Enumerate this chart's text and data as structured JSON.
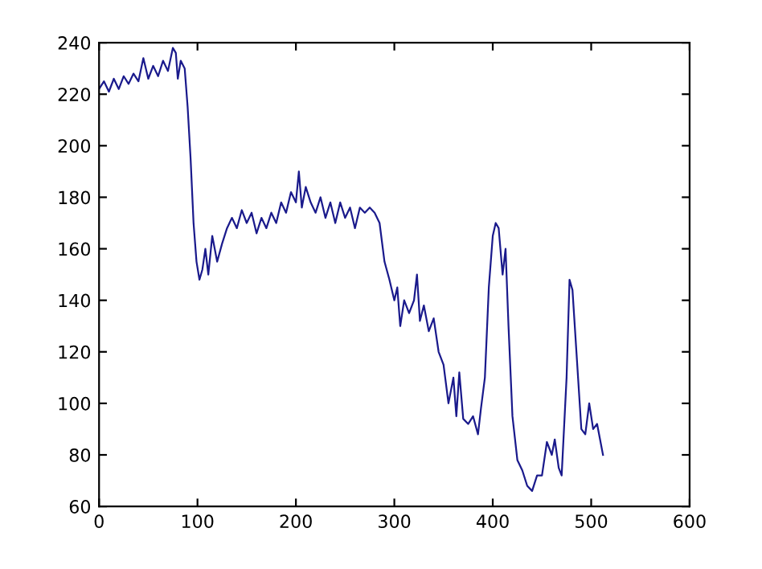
{
  "chart_data": {
    "type": "line",
    "xlim": [
      0,
      600
    ],
    "xticks": [
      0,
      100,
      200,
      300,
      400,
      500,
      600
    ],
    "ylim": [
      60,
      240
    ],
    "yticks": [
      60,
      80,
      100,
      120,
      140,
      160,
      180,
      200,
      220,
      240
    ],
    "grid": false,
    "legend": false,
    "marker": "none",
    "line_style": "solid",
    "series": [
      {
        "color": "#1a1a8c",
        "x": [
          0,
          5,
          10,
          15,
          20,
          25,
          30,
          35,
          40,
          45,
          50,
          55,
          60,
          65,
          70,
          75,
          78,
          80,
          83,
          87,
          90,
          93,
          96,
          99,
          102,
          105,
          108,
          111,
          115,
          120,
          125,
          130,
          135,
          140,
          145,
          150,
          155,
          160,
          165,
          170,
          175,
          180,
          185,
          190,
          195,
          200,
          203,
          206,
          210,
          215,
          220,
          225,
          230,
          235,
          240,
          245,
          250,
          255,
          260,
          265,
          270,
          275,
          280,
          285,
          290,
          295,
          300,
          303,
          306,
          310,
          315,
          320,
          323,
          326,
          330,
          335,
          340,
          345,
          350,
          355,
          360,
          363,
          366,
          370,
          375,
          380,
          385,
          388,
          392,
          396,
          400,
          403,
          406,
          410,
          413,
          416,
          420,
          425,
          430,
          435,
          440,
          445,
          450,
          455,
          460,
          463,
          467,
          470,
          475,
          478,
          481,
          485,
          490,
          494,
          498,
          502,
          506,
          509,
          512
        ],
        "values": [
          222,
          225,
          221,
          226,
          222,
          227,
          224,
          228,
          225,
          234,
          226,
          231,
          227,
          233,
          229,
          238,
          236,
          226,
          233,
          230,
          215,
          195,
          170,
          155,
          148,
          152,
          160,
          150,
          165,
          155,
          162,
          168,
          172,
          168,
          175,
          170,
          174,
          166,
          172,
          168,
          174,
          170,
          178,
          174,
          182,
          178,
          190,
          176,
          184,
          178,
          174,
          180,
          172,
          178,
          170,
          178,
          172,
          176,
          168,
          176,
          174,
          176,
          174,
          170,
          155,
          148,
          140,
          145,
          130,
          140,
          135,
          140,
          150,
          132,
          138,
          128,
          133,
          120,
          115,
          100,
          110,
          95,
          112,
          94,
          92,
          95,
          88,
          98,
          110,
          145,
          165,
          170,
          168,
          150,
          160,
          130,
          95,
          78,
          74,
          68,
          66,
          72,
          72,
          85,
          80,
          86,
          75,
          72,
          110,
          148,
          144,
          120,
          90,
          88,
          100,
          90,
          92,
          86,
          80
        ]
      }
    ]
  }
}
